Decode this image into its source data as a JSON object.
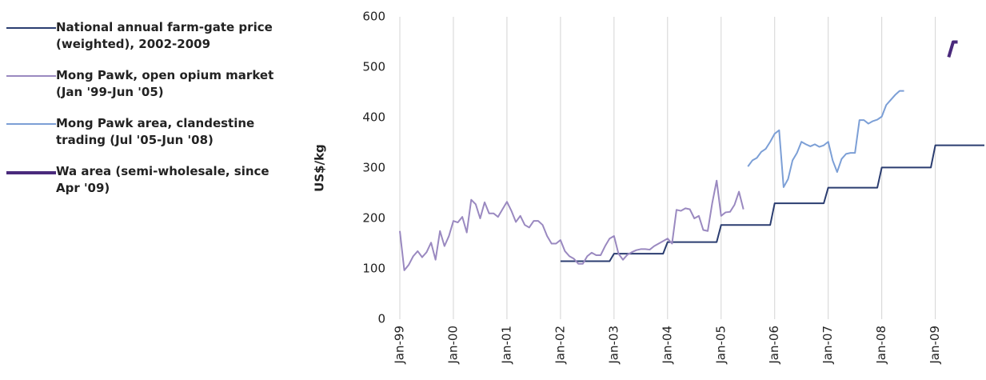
{
  "chart_data": {
    "type": "line",
    "y_label": "US$/kg",
    "ylim": [
      0,
      600
    ],
    "yticks": [
      0,
      100,
      200,
      300,
      400,
      500,
      600
    ],
    "xlim": [
      "1999-01",
      "2009-12"
    ],
    "xticks": [
      {
        "value": "1999-01",
        "label": "Jan-99"
      },
      {
        "value": "2000-01",
        "label": "Jan-00"
      },
      {
        "value": "2001-01",
        "label": "Jan-01"
      },
      {
        "value": "2002-01",
        "label": "Jan-02"
      },
      {
        "value": "2003-01",
        "label": "Jan-03"
      },
      {
        "value": "2004-01",
        "label": "Jan-04"
      },
      {
        "value": "2005-01",
        "label": "Jan-05"
      },
      {
        "value": "2006-01",
        "label": "Jan-06"
      },
      {
        "value": "2007-01",
        "label": "Jan-07"
      },
      {
        "value": "2008-01",
        "label": "Jan-08"
      },
      {
        "value": "2009-01",
        "label": "Jan-09"
      }
    ],
    "grid": "x",
    "x": [
      "1999-01",
      "1999-02",
      "1999-03",
      "1999-04",
      "1999-05",
      "1999-06",
      "1999-07",
      "1999-08",
      "1999-09",
      "1999-10",
      "1999-11",
      "1999-12",
      "2000-01",
      "2000-02",
      "2000-03",
      "2000-04",
      "2000-05",
      "2000-06",
      "2000-07",
      "2000-08",
      "2000-09",
      "2000-10",
      "2000-11",
      "2000-12",
      "2001-01",
      "2001-02",
      "2001-03",
      "2001-04",
      "2001-05",
      "2001-06",
      "2001-07",
      "2001-08",
      "2001-09",
      "2001-10",
      "2001-11",
      "2001-12",
      "2002-01",
      "2002-02",
      "2002-03",
      "2002-04",
      "2002-05",
      "2002-06",
      "2002-07",
      "2002-08",
      "2002-09",
      "2002-10",
      "2002-11",
      "2002-12",
      "2003-01",
      "2003-02",
      "2003-03",
      "2003-04",
      "2003-05",
      "2003-06",
      "2003-07",
      "2003-08",
      "2003-09",
      "2003-10",
      "2003-11",
      "2003-12",
      "2004-01",
      "2004-02",
      "2004-03",
      "2004-04",
      "2004-05",
      "2004-06",
      "2004-07",
      "2004-08",
      "2004-09",
      "2004-10",
      "2004-11",
      "2004-12",
      "2005-01",
      "2005-02",
      "2005-03",
      "2005-04",
      "2005-05",
      "2005-06",
      "2005-07",
      "2005-08",
      "2005-09",
      "2005-10",
      "2005-11",
      "2005-12",
      "2006-01",
      "2006-02",
      "2006-03",
      "2006-04",
      "2006-05",
      "2006-06",
      "2006-07",
      "2006-08",
      "2006-09",
      "2006-10",
      "2006-11",
      "2006-12",
      "2007-01",
      "2007-02",
      "2007-03",
      "2007-04",
      "2007-05",
      "2007-06",
      "2007-07",
      "2007-08",
      "2007-09",
      "2007-10",
      "2007-11",
      "2007-12",
      "2008-01",
      "2008-02",
      "2008-03",
      "2008-04",
      "2008-05",
      "2008-06",
      "2008-07",
      "2008-08",
      "2008-09",
      "2008-10",
      "2008-11",
      "2008-12",
      "2009-01",
      "2009-02",
      "2009-03",
      "2009-04",
      "2009-05",
      "2009-06",
      "2009-07",
      "2009-08",
      "2009-09",
      "2009-10",
      "2009-11",
      "2009-12"
    ],
    "series": [
      {
        "name": "National annual farm-gate price (weighted), 2002-2009",
        "color": "#2b3d70",
        "width": 2,
        "values": [
          null,
          null,
          null,
          null,
          null,
          null,
          null,
          null,
          null,
          null,
          null,
          null,
          null,
          null,
          null,
          null,
          null,
          null,
          null,
          null,
          null,
          null,
          null,
          null,
          null,
          null,
          null,
          null,
          null,
          null,
          null,
          null,
          null,
          null,
          null,
          null,
          115,
          115,
          115,
          115,
          115,
          115,
          115,
          115,
          115,
          115,
          115,
          115,
          130,
          130,
          130,
          130,
          130,
          130,
          130,
          130,
          130,
          130,
          130,
          130,
          153,
          153,
          153,
          153,
          153,
          153,
          153,
          153,
          153,
          153,
          153,
          153,
          187,
          187,
          187,
          187,
          187,
          187,
          187,
          187,
          187,
          187,
          187,
          187,
          230,
          230,
          230,
          230,
          230,
          230,
          230,
          230,
          230,
          230,
          230,
          230,
          261,
          261,
          261,
          261,
          261,
          261,
          261,
          261,
          261,
          261,
          261,
          261,
          301,
          301,
          301,
          301,
          301,
          301,
          301,
          301,
          301,
          301,
          301,
          301,
          345,
          345,
          345,
          345,
          345,
          345,
          345,
          345,
          345,
          345,
          345,
          345
        ]
      },
      {
        "name": "Mong Pawk, open opium market (Jan '99-Jun '05)",
        "color": "#9a89c0",
        "width": 2,
        "values": [
          175,
          97,
          108,
          125,
          135,
          123,
          133,
          152,
          118,
          175,
          145,
          165,
          195,
          192,
          203,
          172,
          237,
          228,
          200,
          232,
          210,
          210,
          203,
          218,
          233,
          215,
          193,
          205,
          187,
          182,
          195,
          195,
          187,
          165,
          150,
          150,
          157,
          135,
          125,
          120,
          110,
          110,
          125,
          132,
          127,
          127,
          145,
          160,
          165,
          130,
          118,
          128,
          133,
          137,
          139,
          139,
          138,
          145,
          150,
          155,
          160,
          150,
          217,
          215,
          220,
          218,
          200,
          205,
          177,
          175,
          230,
          275,
          205,
          212,
          213,
          227,
          253,
          218,
          null,
          null,
          null,
          null,
          null,
          null,
          null,
          null,
          null,
          null,
          null,
          null,
          null,
          null,
          null,
          null,
          null,
          null,
          null,
          null,
          null,
          null,
          null,
          null,
          null,
          null,
          null,
          null,
          null,
          null,
          null,
          null,
          null,
          null,
          null,
          null,
          null,
          null,
          null,
          null,
          null,
          null,
          null,
          null,
          null,
          null,
          null,
          null,
          null,
          null,
          null,
          null,
          null,
          null
        ]
      },
      {
        "name": "Mong Pawk area, clandestine trading (Jul '05-Jun '08)",
        "color": "#7c9fd6",
        "width": 2,
        "values": [
          null,
          null,
          null,
          null,
          null,
          null,
          null,
          null,
          null,
          null,
          null,
          null,
          null,
          null,
          null,
          null,
          null,
          null,
          null,
          null,
          null,
          null,
          null,
          null,
          null,
          null,
          null,
          null,
          null,
          null,
          null,
          null,
          null,
          null,
          null,
          null,
          null,
          null,
          null,
          null,
          null,
          null,
          null,
          null,
          null,
          null,
          null,
          null,
          null,
          null,
          null,
          null,
          null,
          null,
          null,
          null,
          null,
          null,
          null,
          null,
          null,
          null,
          null,
          null,
          null,
          null,
          null,
          null,
          null,
          null,
          null,
          null,
          null,
          null,
          null,
          null,
          null,
          null,
          303,
          315,
          320,
          332,
          338,
          352,
          368,
          375,
          262,
          278,
          315,
          330,
          352,
          347,
          343,
          347,
          342,
          345,
          352,
          315,
          292,
          318,
          328,
          330,
          330,
          395,
          395,
          388,
          393,
          396,
          402,
          425,
          435,
          445,
          453,
          453,
          null,
          null,
          null,
          null,
          null,
          null,
          null,
          null,
          null,
          null,
          null,
          null,
          null,
          null,
          null,
          null,
          null,
          null
        ]
      },
      {
        "name": "Wa area (semi-wholesale, since Apr '09)",
        "color": "#4a2a7c",
        "width": 4,
        "values": [
          null,
          null,
          null,
          null,
          null,
          null,
          null,
          null,
          null,
          null,
          null,
          null,
          null,
          null,
          null,
          null,
          null,
          null,
          null,
          null,
          null,
          null,
          null,
          null,
          null,
          null,
          null,
          null,
          null,
          null,
          null,
          null,
          null,
          null,
          null,
          null,
          null,
          null,
          null,
          null,
          null,
          null,
          null,
          null,
          null,
          null,
          null,
          null,
          null,
          null,
          null,
          null,
          null,
          null,
          null,
          null,
          null,
          null,
          null,
          null,
          null,
          null,
          null,
          null,
          null,
          null,
          null,
          null,
          null,
          null,
          null,
          null,
          null,
          null,
          null,
          null,
          null,
          null,
          null,
          null,
          null,
          null,
          null,
          null,
          null,
          null,
          null,
          null,
          null,
          null,
          null,
          null,
          null,
          null,
          null,
          null,
          null,
          null,
          null,
          null,
          null,
          null,
          null,
          null,
          null,
          null,
          null,
          null,
          null,
          null,
          null,
          null,
          null,
          null,
          null,
          null,
          null,
          null,
          null,
          null,
          null,
          null,
          null,
          520,
          550,
          550,
          null,
          null,
          null,
          null,
          null,
          null
        ]
      }
    ]
  }
}
